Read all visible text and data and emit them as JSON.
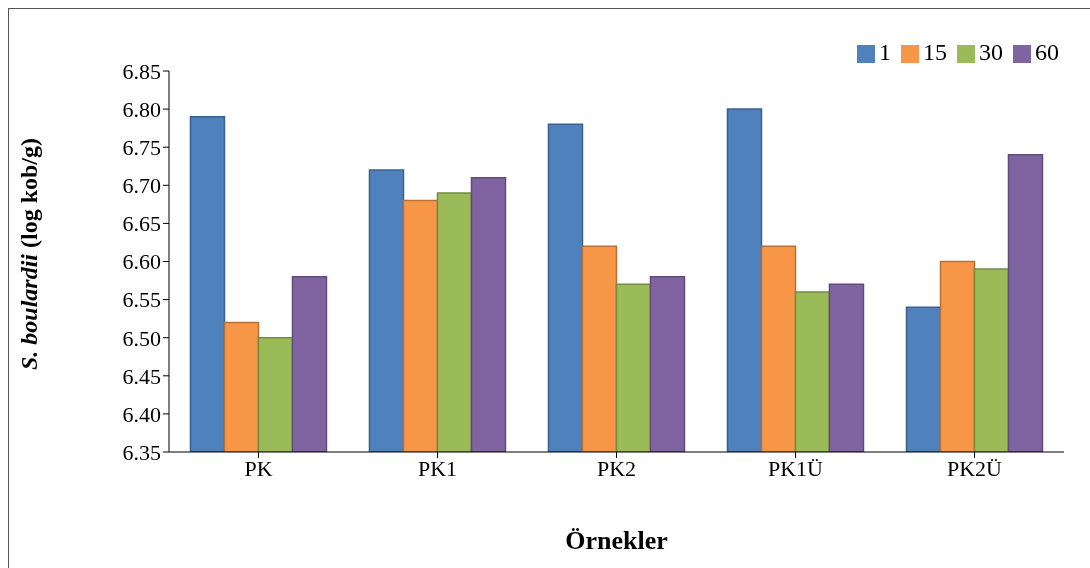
{
  "chart_data": {
    "type": "bar",
    "xlabel": "Örnekler",
    "ylabel": "S. boulardii (log kob/g)",
    "categories": [
      "PK",
      "PK1",
      "PK2",
      "PK1Ü",
      "PK2Ü"
    ],
    "series": [
      {
        "name": "1",
        "color": "#4f81bd",
        "values": [
          6.79,
          6.72,
          6.78,
          6.8,
          6.54
        ]
      },
      {
        "name": "15",
        "color": "#f79646",
        "values": [
          6.52,
          6.68,
          6.62,
          6.62,
          6.6
        ]
      },
      {
        "name": "30",
        "color": "#9bbb59",
        "values": [
          6.5,
          6.69,
          6.57,
          6.56,
          6.59
        ]
      },
      {
        "name": "60",
        "color": "#8064a2",
        "values": [
          6.58,
          6.71,
          6.58,
          6.57,
          6.74
        ]
      }
    ],
    "ylim": [
      6.35,
      6.85
    ],
    "yticks": [
      {
        "value": 6.35,
        "label": "6.35"
      },
      {
        "value": 6.4,
        "label": "6.40"
      },
      {
        "value": 6.45,
        "label": "6.45"
      },
      {
        "value": 6.5,
        "label": "6.50"
      },
      {
        "value": 6.55,
        "label": "6.55"
      },
      {
        "value": 6.6,
        "label": "6.60"
      },
      {
        "value": 6.65,
        "label": "6.65"
      },
      {
        "value": 6.7,
        "label": "6.70"
      },
      {
        "value": 6.75,
        "label": "6.75"
      },
      {
        "value": 6.8,
        "label": "6.80"
      },
      {
        "value": 6.85,
        "label": "6.85"
      }
    ],
    "legend": "top right",
    "grid": false
  }
}
